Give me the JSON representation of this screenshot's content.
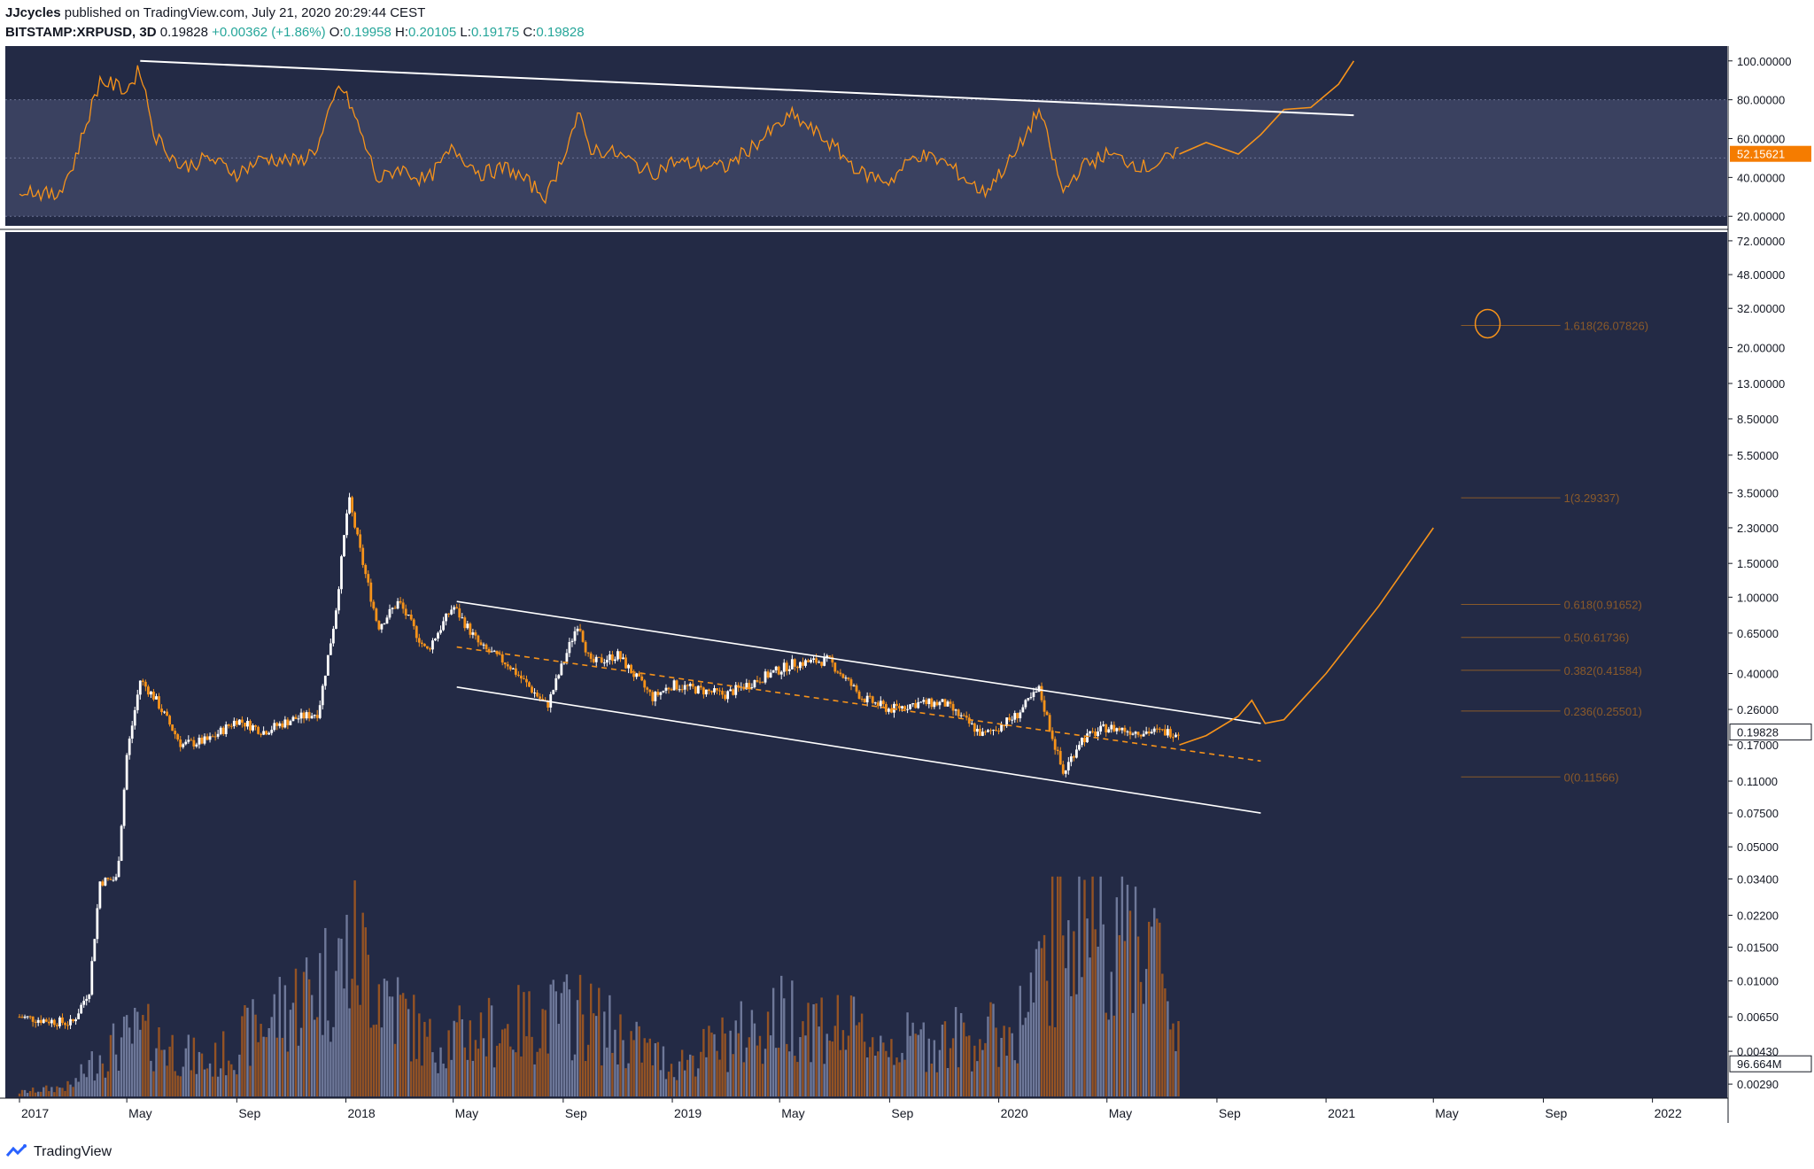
{
  "header": {
    "author": "JJcycles",
    "published_text": "published on TradingView.com, July 21, 2020 20:29:44 CEST",
    "symbol": "BITSTAMP:XRPUSD, 3D",
    "last": "0.19828",
    "change": "+0.00362 (+1.86%)",
    "open_label": "O:",
    "open": "0.19958",
    "high_label": "H:",
    "high": "0.20105",
    "low_label": "L:",
    "low": "0.19175",
    "close_label": "C:",
    "close": "0.19828"
  },
  "footer": {
    "brand": "TradingView"
  },
  "colors": {
    "background": "#232a45",
    "rsi_band": "#3a4160",
    "orange": "#f7931a",
    "fib": "#8a5a2a",
    "candle_up": "#ffffff",
    "candle_down": "#f7931a",
    "volume_up": "#7b86a8",
    "volume_down": "#a85a1e",
    "last_price_badge": "#ffffff",
    "rsi_badge": "#f57c00"
  },
  "chart_data": {
    "type": "candlestick",
    "symbol": "BITSTAMP:XRPUSD",
    "timeframe": "3D",
    "x_axis_labels": [
      "2017",
      "May",
      "Sep",
      "2018",
      "May",
      "Sep",
      "2019",
      "May",
      "Sep",
      "2020",
      "May",
      "Sep",
      "2021",
      "May",
      "Sep",
      "2022"
    ],
    "y_scale": "log",
    "y_axis_labels": [
      "72.00000",
      "48.00000",
      "32.00000",
      "20.00000",
      "13.00000",
      "8.50000",
      "5.50000",
      "3.50000",
      "2.30000",
      "1.50000",
      "1.00000",
      "0.65000",
      "0.40000",
      "0.26000",
      "0.17000",
      "0.11000",
      "0.07500",
      "0.05000",
      "0.03400",
      "0.02200",
      "0.01500",
      "0.01000",
      "0.00650",
      "0.00430",
      "0.00290"
    ],
    "last_price": "0.19828",
    "volume_label": "96.664M",
    "price_path": [
      [
        "2017-01-01",
        0.0065
      ],
      [
        "2017-03-01",
        0.006
      ],
      [
        "2017-03-20",
        0.009
      ],
      [
        "2017-04-01",
        0.033
      ],
      [
        "2017-04-20",
        0.034
      ],
      [
        "2017-05-01",
        0.15
      ],
      [
        "2017-05-16",
        0.37
      ],
      [
        "2017-06-01",
        0.3
      ],
      [
        "2017-07-01",
        0.17
      ],
      [
        "2017-08-01",
        0.18
      ],
      [
        "2017-09-01",
        0.23
      ],
      [
        "2017-10-01",
        0.2
      ],
      [
        "2017-11-01",
        0.23
      ],
      [
        "2017-12-01",
        0.25
      ],
      [
        "2017-12-20",
        0.8
      ],
      [
        "2018-01-04",
        3.3
      ],
      [
        "2018-01-20",
        1.5
      ],
      [
        "2018-02-06",
        0.7
      ],
      [
        "2018-03-01",
        0.95
      ],
      [
        "2018-04-01",
        0.52
      ],
      [
        "2018-05-01",
        0.9
      ],
      [
        "2018-06-01",
        0.55
      ],
      [
        "2018-07-01",
        0.45
      ],
      [
        "2018-08-14",
        0.27
      ],
      [
        "2018-09-18",
        0.75
      ],
      [
        "2018-10-01",
        0.45
      ],
      [
        "2018-11-01",
        0.5
      ],
      [
        "2018-12-10",
        0.3
      ],
      [
        "2019-01-01",
        0.35
      ],
      [
        "2019-03-01",
        0.31
      ],
      [
        "2019-05-15",
        0.45
      ],
      [
        "2019-06-25",
        0.47
      ],
      [
        "2019-08-01",
        0.3
      ],
      [
        "2019-09-01",
        0.26
      ],
      [
        "2019-10-01",
        0.28
      ],
      [
        "2019-11-01",
        0.28
      ],
      [
        "2019-12-15",
        0.19
      ],
      [
        "2020-01-20",
        0.24
      ],
      [
        "2020-02-15",
        0.33
      ],
      [
        "2020-03-13",
        0.12
      ],
      [
        "2020-04-01",
        0.18
      ],
      [
        "2020-05-01",
        0.21
      ],
      [
        "2020-06-01",
        0.2
      ],
      [
        "2020-07-21",
        0.198
      ]
    ],
    "volume_path": [
      [
        "2017-01-01",
        0.02
      ],
      [
        "2017-03-01",
        0.05
      ],
      [
        "2017-04-01",
        0.2
      ],
      [
        "2017-05-16",
        0.3
      ],
      [
        "2017-08-01",
        0.15
      ],
      [
        "2017-12-20",
        0.6
      ],
      [
        "2018-01-10",
        0.7
      ],
      [
        "2018-04-01",
        0.25
      ],
      [
        "2018-09-18",
        0.4
      ],
      [
        "2019-01-01",
        0.15
      ],
      [
        "2019-05-15",
        0.4
      ],
      [
        "2019-09-01",
        0.25
      ],
      [
        "2020-01-15",
        0.3
      ],
      [
        "2020-02-20",
        0.55
      ],
      [
        "2020-03-13",
        0.95
      ],
      [
        "2020-05-01",
        0.85
      ],
      [
        "2020-06-15",
        0.8
      ],
      [
        "2020-07-21",
        0.3
      ]
    ],
    "channel": {
      "upper": [
        [
          "2018-05-05",
          0.95
        ],
        [
          "2020-10-20",
          0.22
        ]
      ],
      "lower": [
        [
          "2018-05-05",
          0.34
        ],
        [
          "2020-10-20",
          0.075
        ]
      ],
      "mid_dashed": [
        [
          "2018-05-05",
          0.55
        ],
        [
          "2020-10-20",
          0.14
        ]
      ]
    },
    "projection_path": [
      [
        "2020-07-21",
        0.17
      ],
      [
        "2020-08-20",
        0.19
      ],
      [
        "2020-09-25",
        0.24
      ],
      [
        "2020-10-10",
        0.29
      ],
      [
        "2020-10-25",
        0.22
      ],
      [
        "2020-11-15",
        0.23
      ],
      [
        "2021-01-01",
        0.4
      ],
      [
        "2021-03-01",
        0.9
      ],
      [
        "2021-05-01",
        2.3
      ]
    ],
    "fib_levels": [
      {
        "ratio": "1.618",
        "value": 26.07826,
        "label": "1.618(26.07826)"
      },
      {
        "ratio": "1",
        "value": 3.29337,
        "label": "1(3.29337)"
      },
      {
        "ratio": "0.618",
        "value": 0.91652,
        "label": "0.618(0.91652)"
      },
      {
        "ratio": "0.5",
        "value": 0.61736,
        "label": "0.5(0.61736)"
      },
      {
        "ratio": "0.382",
        "value": 0.41584,
        "label": "0.382(0.41584)"
      },
      {
        "ratio": "0.236",
        "value": 0.25501,
        "label": "0.236(0.25501)"
      },
      {
        "ratio": "0",
        "value": 0.11566,
        "label": "0(0.11566)"
      }
    ],
    "rsi": {
      "y_axis_labels": [
        "100.00000",
        "80.00000",
        "60.00000",
        "40.00000",
        "20.00000"
      ],
      "range": [
        20,
        100
      ],
      "band": [
        30,
        70
      ],
      "last": "52.15621",
      "path": [
        [
          "2017-01-01",
          35
        ],
        [
          "2017-02-10",
          30
        ],
        [
          "2017-03-01",
          45
        ],
        [
          "2017-04-01",
          90
        ],
        [
          "2017-05-01",
          85
        ],
        [
          "2017-05-16",
          96
        ],
        [
          "2017-06-01",
          62
        ],
        [
          "2017-07-01",
          45
        ],
        [
          "2017-08-01",
          50
        ],
        [
          "2017-09-01",
          42
        ],
        [
          "2017-10-01",
          50
        ],
        [
          "2017-11-10",
          48
        ],
        [
          "2017-12-01",
          56
        ],
        [
          "2017-12-25",
          88
        ],
        [
          "2018-01-08",
          75
        ],
        [
          "2018-02-06",
          38
        ],
        [
          "2018-03-01",
          45
        ],
        [
          "2018-04-01",
          38
        ],
        [
          "2018-05-01",
          55
        ],
        [
          "2018-06-01",
          42
        ],
        [
          "2018-07-01",
          45
        ],
        [
          "2018-08-14",
          30
        ],
        [
          "2018-09-18",
          72
        ],
        [
          "2018-10-01",
          55
        ],
        [
          "2018-11-01",
          52
        ],
        [
          "2018-12-10",
          42
        ],
        [
          "2019-01-01",
          48
        ],
        [
          "2019-03-01",
          45
        ],
        [
          "2019-05-15",
          72
        ],
        [
          "2019-06-25",
          58
        ],
        [
          "2019-08-01",
          42
        ],
        [
          "2019-09-01",
          38
        ],
        [
          "2019-10-01",
          52
        ],
        [
          "2019-11-01",
          48
        ],
        [
          "2019-12-15",
          32
        ],
        [
          "2020-01-20",
          52
        ],
        [
          "2020-02-15",
          75
        ],
        [
          "2020-03-13",
          32
        ],
        [
          "2020-04-01",
          45
        ],
        [
          "2020-05-01",
          52
        ],
        [
          "2020-06-15",
          45
        ],
        [
          "2020-07-21",
          52
        ]
      ],
      "trendline": [
        [
          "2017-05-16",
          100
        ],
        [
          "2021-02-01",
          72
        ]
      ],
      "projection": [
        [
          "2020-07-21",
          52
        ],
        [
          "2020-08-20",
          58
        ],
        [
          "2020-09-25",
          52
        ],
        [
          "2020-10-20",
          62
        ],
        [
          "2020-11-15",
          75
        ],
        [
          "2020-12-15",
          76
        ],
        [
          "2021-01-15",
          88
        ],
        [
          "2021-02-01",
          100
        ]
      ]
    }
  }
}
